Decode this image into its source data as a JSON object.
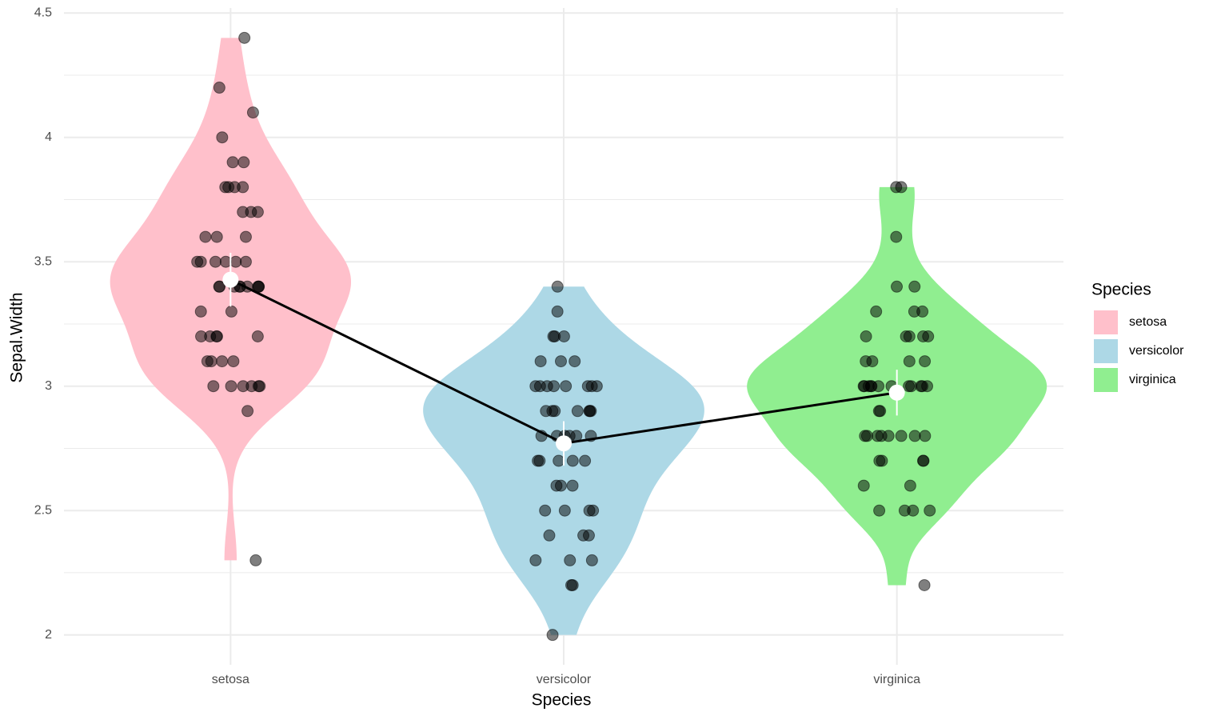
{
  "chart_data": {
    "type": "violin",
    "x_label": "Species",
    "y_label": "Sepal.Width",
    "categories": [
      "setosa",
      "versicolor",
      "virginica"
    ],
    "series": [
      {
        "name": "setosa",
        "color": "#ffc0cb",
        "mean": 3.428,
        "ci": 0.108,
        "values": [
          3.5,
          3.0,
          3.2,
          3.1,
          3.6,
          3.9,
          3.4,
          3.4,
          2.9,
          3.1,
          3.7,
          3.4,
          3.0,
          3.0,
          4.0,
          4.4,
          3.9,
          3.5,
          3.8,
          3.8,
          3.4,
          3.7,
          3.6,
          3.3,
          3.4,
          3.0,
          3.4,
          3.5,
          3.4,
          3.2,
          3.1,
          3.4,
          4.1,
          4.2,
          3.1,
          3.2,
          3.5,
          3.6,
          3.0,
          3.4,
          3.5,
          2.3,
          3.2,
          3.5,
          3.8,
          3.0,
          3.8,
          3.2,
          3.7,
          3.3
        ]
      },
      {
        "name": "versicolor",
        "color": "#add8e6",
        "mean": 2.77,
        "ci": 0.089,
        "values": [
          3.2,
          3.2,
          3.1,
          2.3,
          2.8,
          2.8,
          3.3,
          2.4,
          2.9,
          2.7,
          2.0,
          3.0,
          2.2,
          2.9,
          2.9,
          3.1,
          3.0,
          2.7,
          2.2,
          2.5,
          3.2,
          2.8,
          2.5,
          2.8,
          2.9,
          3.0,
          2.8,
          3.0,
          2.9,
          2.6,
          2.4,
          2.4,
          2.7,
          2.7,
          3.0,
          3.4,
          3.1,
          2.3,
          3.0,
          2.5,
          2.6,
          3.0,
          2.6,
          2.3,
          2.7,
          3.0,
          2.9,
          2.9,
          2.5,
          2.8
        ]
      },
      {
        "name": "virginica",
        "color": "#90ee90",
        "mean": 2.974,
        "ci": 0.092,
        "values": [
          3.3,
          2.7,
          3.0,
          2.9,
          3.0,
          3.0,
          2.5,
          2.9,
          2.5,
          3.6,
          3.2,
          2.7,
          3.0,
          2.5,
          2.8,
          3.2,
          3.0,
          3.8,
          2.6,
          2.2,
          3.2,
          2.8,
          2.8,
          2.7,
          3.3,
          3.2,
          2.8,
          3.0,
          2.8,
          3.0,
          2.8,
          3.8,
          2.8,
          2.8,
          2.6,
          3.0,
          3.4,
          3.1,
          3.0,
          3.1,
          3.1,
          3.1,
          2.7,
          3.2,
          3.3,
          3.0,
          2.5,
          3.0,
          3.4,
          3.0
        ]
      }
    ],
    "point_color": "#000000",
    "mean_color": "#ffffff",
    "line_color": "#000000",
    "ylim": [
      1.88,
      4.52
    ],
    "yticks": [
      2.0,
      2.5,
      3.0,
      3.5,
      4.0,
      4.5
    ],
    "minor_yticks": [
      2.25,
      2.75,
      3.25,
      3.75,
      4.25
    ],
    "grid": true,
    "legend": "right",
    "legend_title": "Species"
  }
}
